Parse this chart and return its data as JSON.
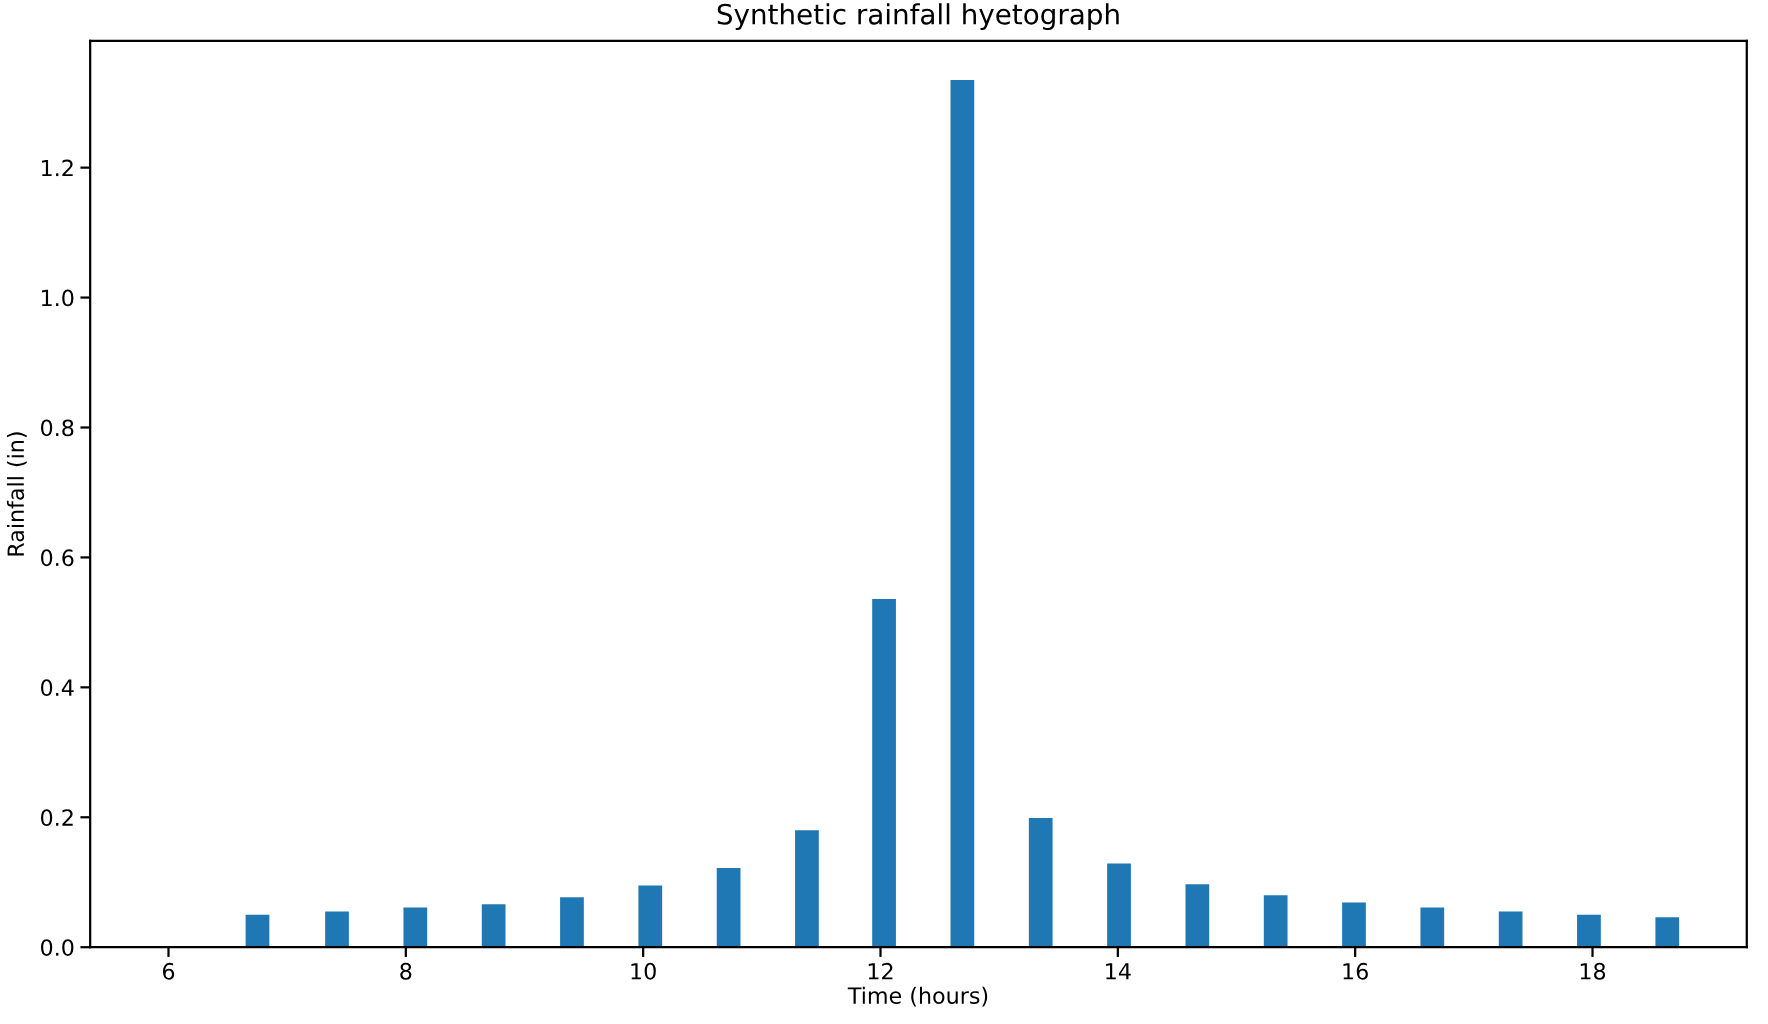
{
  "chart_data": {
    "type": "bar",
    "title": "Synthetic rainfall hyetograph",
    "xlabel": "Time (hours)",
    "ylabel": "Rainfall (in)",
    "x": [
      6.75,
      7.42,
      8.08,
      8.74,
      9.4,
      10.06,
      10.72,
      11.38,
      12.03,
      12.69,
      13.35,
      14.01,
      14.67,
      15.33,
      15.99,
      16.65,
      17.31,
      17.97,
      18.63
    ],
    "values": [
      0.05,
      0.055,
      0.061,
      0.066,
      0.077,
      0.095,
      0.122,
      0.18,
      0.536,
      1.335,
      0.199,
      0.129,
      0.097,
      0.08,
      0.069,
      0.061,
      0.055,
      0.05,
      0.046
    ],
    "color": "#1f77b4",
    "xlim": [
      5.34,
      19.3
    ],
    "ylim": [
      0,
      1.395
    ],
    "xticks": [
      6,
      8,
      10,
      12,
      14,
      16,
      18
    ],
    "yticks": [
      {
        "value": 0,
        "label": "0.0"
      },
      {
        "value": 0.2,
        "label": "0.2"
      },
      {
        "value": 0.4,
        "label": "0.4"
      },
      {
        "value": 0.6,
        "label": "0.6"
      },
      {
        "value": 0.8,
        "label": "0.8"
      },
      {
        "value": 1.0,
        "label": "1.0"
      },
      {
        "value": 1.2,
        "label": "1.2"
      }
    ],
    "grid": false,
    "legend": false
  }
}
